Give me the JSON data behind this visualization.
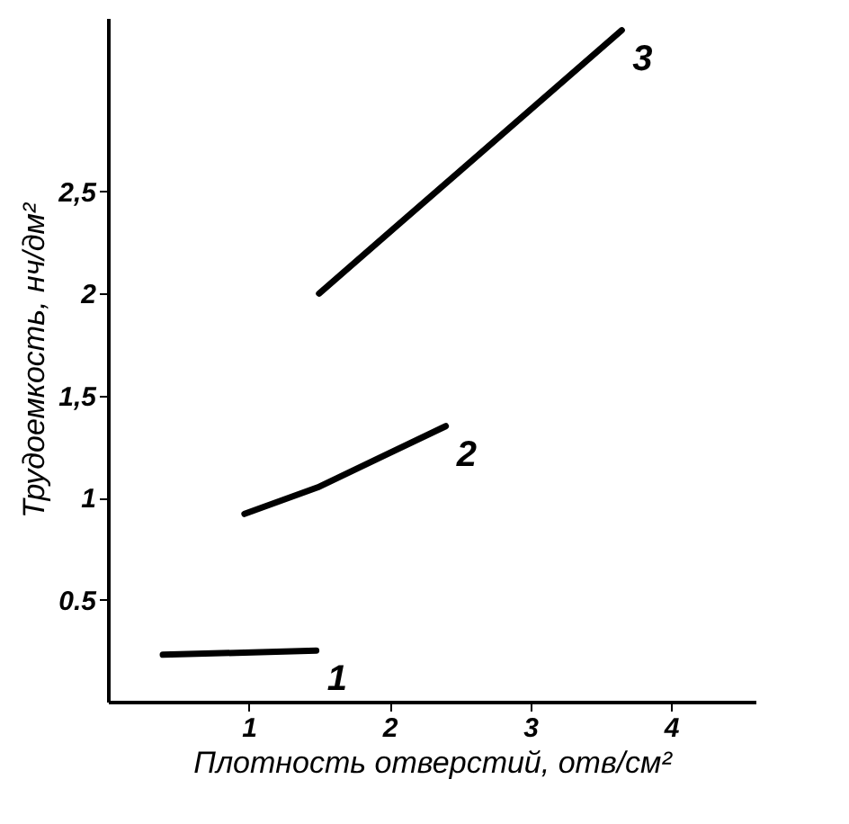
{
  "chart_data": {
    "type": "line",
    "xlabel": "Плотность отверстий, отв/см²",
    "ylabel": "Трудоемкость, нч/дм²",
    "xlim": [
      0,
      4.6
    ],
    "ylim": [
      0,
      3.35
    ],
    "xticks": [
      1,
      2,
      3,
      4
    ],
    "yticks": [
      {
        "value": 0.5,
        "label": "0.5"
      },
      1,
      {
        "value": 1.5,
        "label": "1,5"
      },
      2,
      {
        "value": 2.5,
        "label": "2,5"
      }
    ],
    "grid": false,
    "marker": "none",
    "line_style": "solid",
    "series": [
      {
        "name": "1",
        "color": "#000000",
        "x": [
          0.39,
          1.48
        ],
        "values": [
          0.23,
          0.25
        ]
      },
      {
        "name": "2",
        "color": "#000000",
        "x": [
          0.97,
          1.49,
          2.4
        ],
        "values": [
          0.92,
          1.05,
          1.35
        ]
      },
      {
        "name": "3",
        "color": "#000000",
        "x": [
          1.5,
          3.65
        ],
        "values": [
          2.0,
          3.29
        ]
      }
    ]
  }
}
